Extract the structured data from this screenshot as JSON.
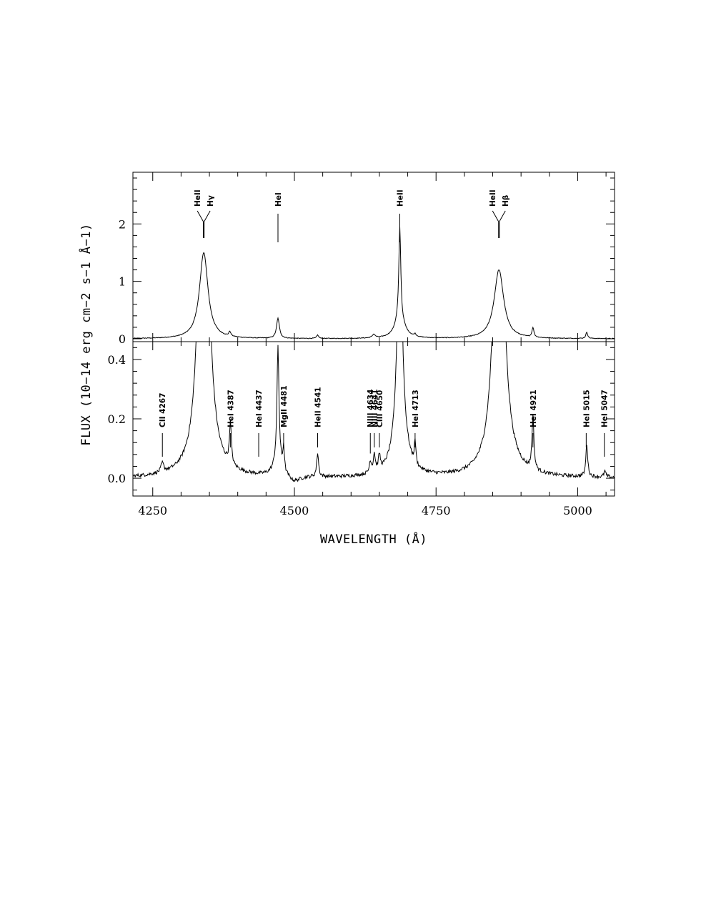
{
  "chart_data": {
    "type": "line",
    "xlabel": "WAVELENGTH (Å)",
    "ylabel": "FLUX (10−14 erg cm−2 s−1 Å−1)",
    "xlim": [
      4215,
      5065
    ],
    "x_ticks": [
      4250,
      4500,
      4750,
      5000
    ],
    "x_tick_labels": [
      "4250",
      "4500",
      "4750",
      "5000"
    ],
    "grid": false,
    "legend": "none",
    "panels": [
      {
        "name": "top",
        "ylim": [
          -0.05,
          2.9
        ],
        "y_ticks": [
          0,
          1,
          2
        ],
        "y_tick_labels": [
          "0",
          "1",
          "2"
        ],
        "continuum": 0.0,
        "noise": 0.006,
        "features": [
          {
            "x": 4340,
            "peak": 1.5,
            "width": 9
          },
          {
            "x": 4386,
            "peak": 0.08,
            "width": 2
          },
          {
            "x": 4471,
            "peak": 0.35,
            "width": 3
          },
          {
            "x": 4541,
            "peak": 0.06,
            "width": 2
          },
          {
            "x": 4640,
            "peak": 0.06,
            "width": 3
          },
          {
            "x": 4686,
            "peak": 1.6,
            "width": 2
          },
          {
            "x": 4686,
            "peak": 0.35,
            "width": 10
          },
          {
            "x": 4713,
            "peak": 0.04,
            "width": 2
          },
          {
            "x": 4861,
            "peak": 1.2,
            "width": 10
          },
          {
            "x": 4921,
            "peak": 0.17,
            "width": 2
          },
          {
            "x": 5016,
            "peak": 0.11,
            "width": 2
          }
        ],
        "annotations": [
          {
            "labels": [
              "HeII",
              "Hγ"
            ],
            "x": 4340
          },
          {
            "labels": [
              "HeI"
            ],
            "x": 4471
          },
          {
            "labels": [
              "HeII"
            ],
            "x": 4686
          },
          {
            "labels": [
              "HeII",
              "Hβ"
            ],
            "x": 4861
          }
        ]
      },
      {
        "name": "bottom",
        "ylim": [
          -0.06,
          0.46
        ],
        "y_ticks": [
          0.0,
          0.2,
          0.4
        ],
        "y_tick_labels": [
          "0.0",
          "0.2",
          "0.4"
        ],
        "continuum": 0.0,
        "noise": 0.006,
        "features": [
          {
            "x": 4267,
            "peak": 0.03,
            "width": 3
          },
          {
            "x": 4340,
            "peak": 1.5,
            "width": 9
          },
          {
            "x": 4387,
            "peak": 0.14,
            "width": 2
          },
          {
            "x": 4471,
            "peak": 0.38,
            "width": 2
          },
          {
            "x": 4471,
            "peak": 0.06,
            "width": 8
          },
          {
            "x": 4481,
            "peak": 0.08,
            "width": 1.5
          },
          {
            "x": 4541,
            "peak": 0.08,
            "width": 2
          },
          {
            "x": 4500,
            "peak": -0.02,
            "width": 12
          },
          {
            "x": 4634,
            "peak": 0.04,
            "width": 2
          },
          {
            "x": 4641,
            "peak": 0.06,
            "width": 2
          },
          {
            "x": 4650,
            "peak": 0.05,
            "width": 2
          },
          {
            "x": 4686,
            "peak": 1.6,
            "width": 2
          },
          {
            "x": 4686,
            "peak": 0.35,
            "width": 10
          },
          {
            "x": 4713,
            "peak": 0.08,
            "width": 1.5
          },
          {
            "x": 4861,
            "peak": 1.2,
            "width": 10
          },
          {
            "x": 4921,
            "peak": 0.18,
            "width": 2
          },
          {
            "x": 5016,
            "peak": 0.11,
            "width": 2
          },
          {
            "x": 5048,
            "peak": 0.02,
            "width": 2
          }
        ],
        "annotations": [
          {
            "labels": [
              "CII 4267"
            ],
            "x": 4267
          },
          {
            "labels": [
              "HeI 4387"
            ],
            "x": 4387
          },
          {
            "labels": [
              "HeI 4437"
            ],
            "x": 4437
          },
          {
            "labels": [
              "MgII 4481"
            ],
            "x": 4481
          },
          {
            "labels": [
              "HeII 4541"
            ],
            "x": 4541
          },
          {
            "labels": [
              "NIII 4634"
            ],
            "x": 4634
          },
          {
            "labels": [
              "NIII 4641"
            ],
            "x": 4641
          },
          {
            "labels": [
              "CIII 4650"
            ],
            "x": 4650
          },
          {
            "labels": [
              "HeI 4713"
            ],
            "x": 4713
          },
          {
            "labels": [
              "HeI 4921"
            ],
            "x": 4921
          },
          {
            "labels": [
              "HeI 5015"
            ],
            "x": 5015
          },
          {
            "labels": [
              "HeI 5047"
            ],
            "x": 5047
          }
        ]
      }
    ]
  }
}
